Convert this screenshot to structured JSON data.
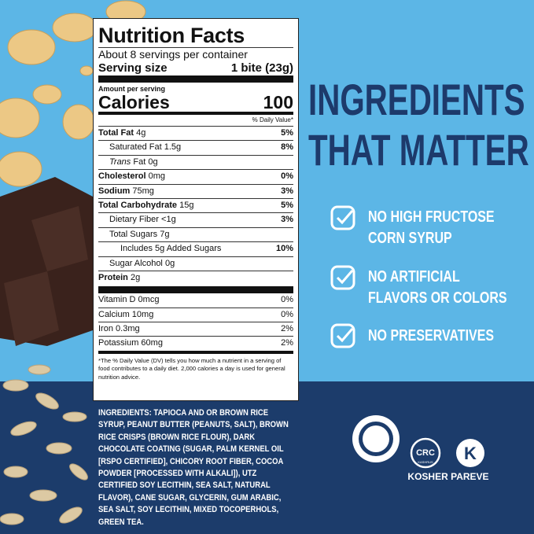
{
  "nutrition": {
    "title": "Nutrition Facts",
    "servings": "About 8 servings per container",
    "serving_size_label": "Serving size",
    "serving_size_value": "1 bite (23g)",
    "amount_per_serving": "Amount per serving",
    "calories_label": "Calories",
    "calories_value": 100,
    "dv_header": "% Daily Value*",
    "rows": [
      {
        "name": "Total Fat",
        "amount": "4g",
        "dv": "5%"
      },
      {
        "name": "Saturated Fat",
        "amount": "1.5g",
        "dv": "8%"
      },
      {
        "name": "Trans",
        "amount": "Fat 0g"
      },
      {
        "name": "Cholesterol",
        "amount": "0mg",
        "dv": "0%"
      },
      {
        "name": "Sodium",
        "amount": "75mg",
        "dv": "3%"
      },
      {
        "name": "Total Carbohydrate",
        "amount": "15g",
        "dv": "5%"
      },
      {
        "name": "Dietary Fiber",
        "amount": "<1g",
        "dv": "3%"
      },
      {
        "name": "Total Sugars",
        "amount": "7g"
      },
      {
        "name": "Includes 5g Added Sugars",
        "dv": "10%"
      },
      {
        "name": "Sugar Alcohol",
        "amount": "0g"
      },
      {
        "name": "Protein",
        "amount": "2g"
      }
    ],
    "vitamins": [
      {
        "name": "Vitamin D",
        "amount": "0mcg",
        "dv": "0%"
      },
      {
        "name": "Calcium",
        "amount": "10mg",
        "dv": "0%"
      },
      {
        "name": "Iron",
        "amount": "0.3mg",
        "dv": "2%"
      },
      {
        "name": "Potassium",
        "amount": "60mg",
        "dv": "2%"
      }
    ],
    "footnote": "*The % Daily Value (DV) tells you how much a nutrient in a serving of food contributes to a daily diet. 2,000 calories a day is used for general nutrition advice."
  },
  "headline": [
    "INGREDIENTS",
    "THAT MATTER"
  ],
  "claims": [
    [
      "NO HIGH FRUCTOSE",
      "CORN SYRUP"
    ],
    [
      "NO ARTIFICIAL",
      "FLAVORS OR COLORS"
    ],
    [
      "NO PRESERVATIVES"
    ]
  ],
  "ingredients": {
    "label": "INGREDIENTS:",
    "text": "TAPIOCA AND OR BROWN RICE SYRUP, PEANUT BUTTER (PEANUTS, SALT), BROWN RICE CRISPS (BROWN RICE FLOUR), DARK CHOCOLATE COATING (SUGAR, PALM KERNEL OIL [RSPO CERTIFIED], CHICORY ROOT FIBER, COCOA POWDER [PROCESSED WITH ALKALI]), UTZ CERTIFIED SOY LECITHIN, SEA SALT, NATURAL FLAVOR), CANE SUGAR, GLYCERIN, GUM ARABIC, SEA SALT, SOY LECITHIN, MIXED TOCOPERHOLS, GREEN TEA."
  },
  "certifications": {
    "crc": "CRC",
    "crc_sub": "KASHRUS",
    "k": "K",
    "label": "KOSHER PAREVE"
  }
}
